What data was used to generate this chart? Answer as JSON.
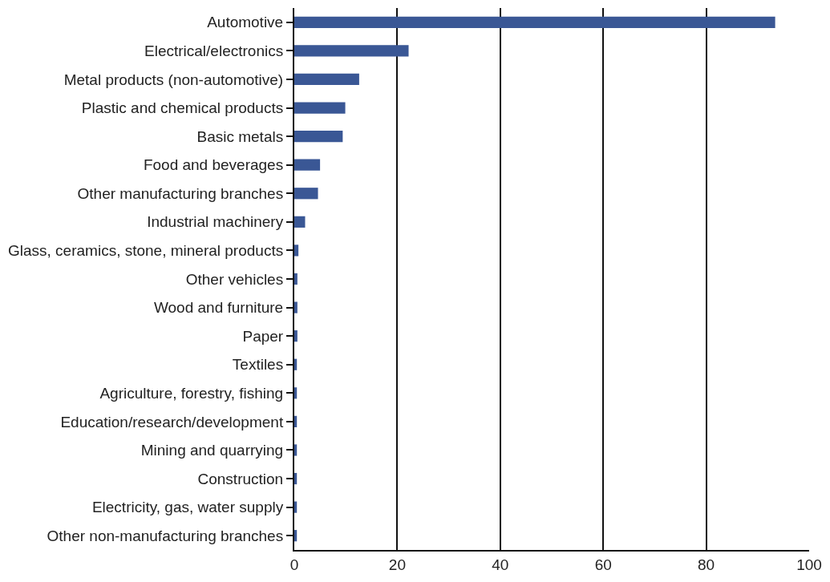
{
  "chart_data": {
    "type": "bar",
    "orientation": "horizontal",
    "categories": [
      "Automotive",
      "Electrical/electronics",
      "Metal products (non-automotive)",
      "Plastic and chemical products",
      "Basic metals",
      "Food and beverages",
      "Other manufacturing branches",
      "Industrial machinery",
      "Glass, ceramics, stone, mineral products",
      "Other vehicles",
      "Wood and furniture",
      "Paper",
      "Textiles",
      "Agriculture, forestry, fishing",
      "Education/research/development",
      "Mining and quarrying",
      "Construction",
      "Electricity, gas, water supply",
      "Other non-manufacturing branches"
    ],
    "values": [
      93.4,
      22.2,
      12.6,
      9.9,
      9.4,
      5.0,
      4.6,
      2.1,
      0.8,
      0.6,
      0.6,
      0.6,
      0.5,
      0.5,
      0.5,
      0.5,
      0.5,
      0.5,
      0.5
    ],
    "color": "#3a5795",
    "xlim": [
      0,
      100
    ],
    "xticks": [
      0,
      20,
      40,
      60,
      80,
      100
    ],
    "grid": "x",
    "legend": false
  }
}
